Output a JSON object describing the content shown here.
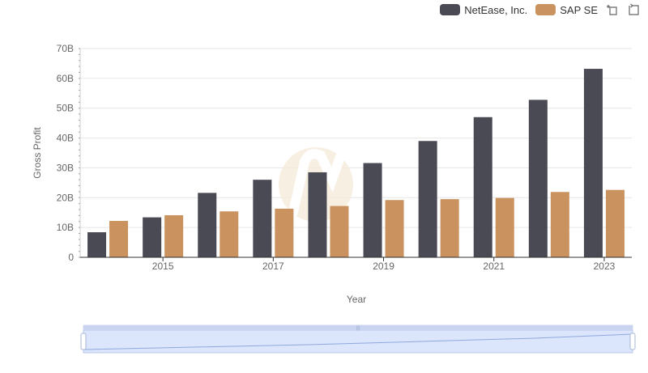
{
  "chart_data": {
    "type": "bar",
    "xlabel": "Year",
    "ylabel": "Gross Profit",
    "ylim": [
      0,
      70
    ],
    "y_ticks": [
      "0",
      "10B",
      "20B",
      "30B",
      "40B",
      "50B",
      "60B",
      "70B"
    ],
    "x_ticks": [
      "2015",
      "2017",
      "2019",
      "2021",
      "2023"
    ],
    "categories": [
      "2014",
      "2015",
      "2016",
      "2017",
      "2018",
      "2019",
      "2020",
      "2021",
      "2022",
      "2023"
    ],
    "series": [
      {
        "name": "NetEase, Inc.",
        "color": "#4a4a55",
        "values": [
          8.4,
          13.4,
          21.6,
          26.0,
          28.5,
          31.6,
          39.0,
          47.0,
          52.8,
          63.2
        ]
      },
      {
        "name": "SAP SE",
        "color": "#c9925e",
        "values": [
          12.2,
          14.1,
          15.4,
          16.3,
          17.2,
          19.2,
          19.5,
          19.9,
          21.9,
          22.6
        ]
      }
    ],
    "legend_position": "top-right",
    "grid": true
  },
  "toolbox": {
    "zoom_icon": "zoom-icon",
    "reset_icon": "restore-icon"
  },
  "datazoom": {
    "handle_label": "|||"
  }
}
